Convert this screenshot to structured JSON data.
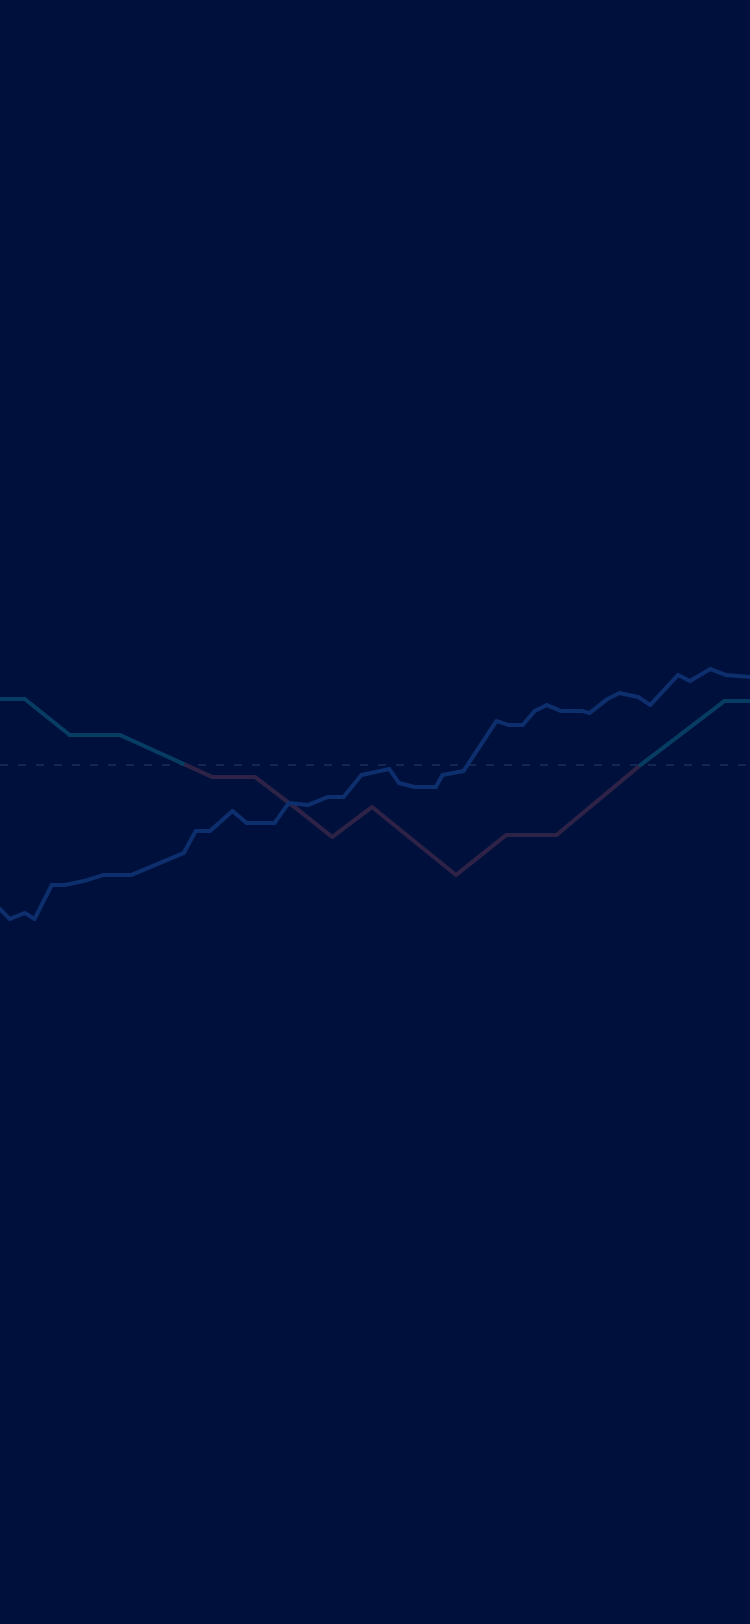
{
  "colors": {
    "background": "#00103c",
    "baseline": "#1c2c5a",
    "above_baseline": "#073d63",
    "below_baseline": "#2e2347",
    "random_walk": "#0d2f6d"
  },
  "chart_data": {
    "type": "line",
    "grid": false,
    "legend": "none",
    "xlim": [
      0,
      100
    ],
    "ylim": [
      -100,
      100
    ],
    "baseline": 0,
    "series": [
      {
        "style": "step-diagonal",
        "color_above": "#073d63",
        "color_below": "#2e2347",
        "x": [
          0,
          3.3,
          9.3,
          16.0,
          28.3,
          34.0,
          39.6,
          44.3,
          49.6,
          60.8,
          67.5,
          74.2,
          85.4,
          96.6,
          100
        ],
        "y": [
          33,
          33,
          15,
          15,
          -6,
          -6,
          -22,
          -36,
          -21,
          -55,
          -35,
          -35,
          0,
          32,
          32
        ]
      },
      {
        "style": "jagged",
        "color": "#0d2f6d",
        "x": [
          0,
          1.3,
          3.3,
          4.6,
          6.9,
          8.6,
          11.2,
          13.8,
          17.5,
          24.5,
          26.1,
          28.0,
          31.0,
          32.9,
          36.6,
          38.5,
          41.1,
          43.7,
          45.8,
          48.2,
          51.9,
          53.2,
          55.3,
          58.1,
          59.0,
          61.8,
          66.2,
          67.8,
          69.7,
          71.3,
          72.9,
          74.8,
          77.6,
          78.6,
          81.0,
          82.6,
          85.1,
          86.7,
          90.4,
          92.0,
          94.7,
          96.8,
          100
        ],
        "y": [
          -72,
          -77,
          -74,
          -77,
          -60,
          -60,
          -58,
          -55,
          -55,
          -44,
          -33,
          -33,
          -23,
          -29,
          -29,
          -19,
          -20,
          -16,
          -16,
          -5,
          -2,
          -9,
          -11,
          -11,
          -5,
          -3,
          22,
          20,
          20,
          27,
          30,
          27,
          27,
          26,
          33,
          36,
          34,
          30,
          45,
          42,
          48,
          45,
          44
        ]
      }
    ]
  }
}
